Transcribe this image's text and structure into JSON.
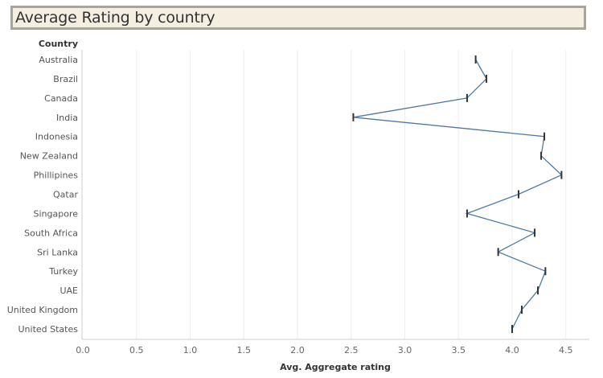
{
  "title": "Average Rating by country",
  "chart_data": {
    "type": "line",
    "title": "Average Rating by country",
    "row_header": "Country",
    "xlabel": "Avg. Aggregate rating",
    "ylabel": "",
    "xlim": [
      0,
      4.6
    ],
    "xticks": [
      "0.0",
      "0.5",
      "1.0",
      "1.5",
      "2.0",
      "2.5",
      "3.0",
      "3.5",
      "4.0",
      "4.5"
    ],
    "grid": true,
    "categories": [
      "Australia",
      "Brazil",
      "Canada",
      "India",
      "Indonesia",
      "New Zealand",
      "Phillipines",
      "Qatar",
      "Singapore",
      "South Africa",
      "Sri Lanka",
      "Turkey",
      "UAE",
      "United Kingdom",
      "United States"
    ],
    "values": [
      3.66,
      3.76,
      3.58,
      2.52,
      4.3,
      4.27,
      4.46,
      4.06,
      3.58,
      4.21,
      3.87,
      4.31,
      4.24,
      4.09,
      4.0
    ],
    "line_color": "#4e79a7",
    "marker_color": "#333333"
  }
}
